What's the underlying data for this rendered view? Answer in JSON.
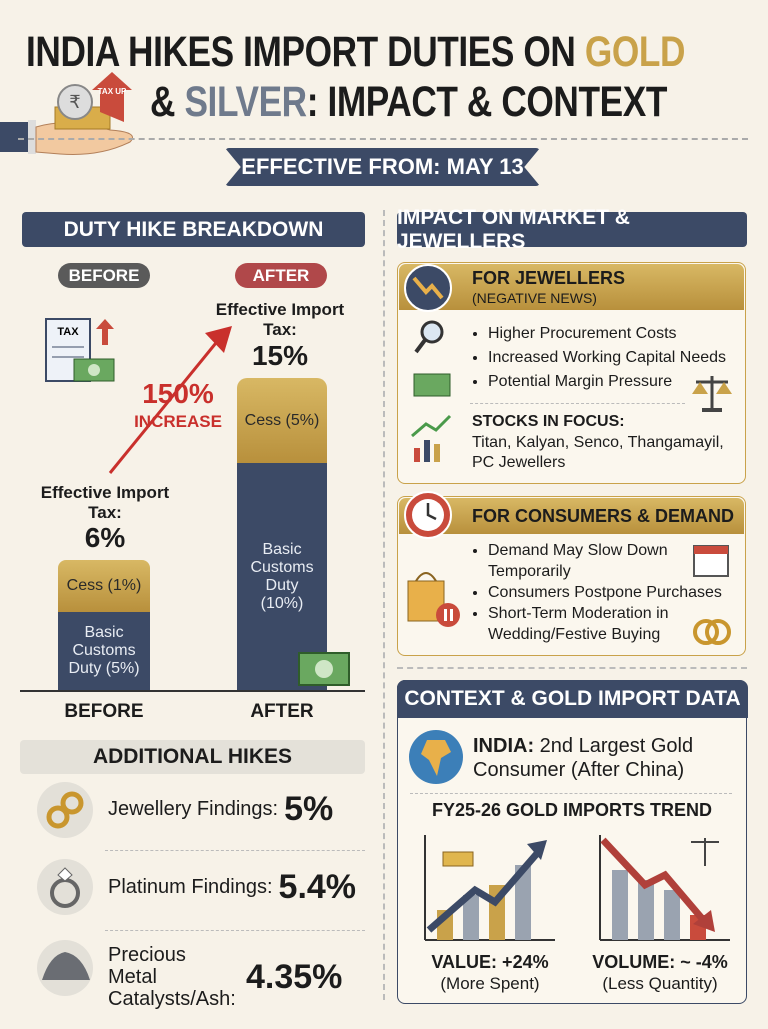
{
  "title": {
    "line1": "INDIA HIKES IMPORT DUTIES ON",
    "gold": "GOLD",
    "amp": "&",
    "silver": "SILVER",
    "line2": ": IMPACT & CONTEXT",
    "icon": "TAX UP"
  },
  "effective": "EFFECTIVE FROM: MAY 13",
  "breakdown": {
    "header": "DUTY HIKE BREAKDOWN",
    "tax_icon": "TAX",
    "before": {
      "pill": "BEFORE",
      "label": "Effective Import Tax:",
      "value": "6%",
      "cess": "Cess (1%)",
      "basic": "Basic Customs Duty (5%)",
      "axis": "BEFORE"
    },
    "after": {
      "pill": "AFTER",
      "label": "Effective Import Tax:",
      "value": "15%",
      "cess": "Cess (5%)",
      "basic": "Basic Customs Duty (10%)",
      "axis": "AFTER"
    },
    "increase": {
      "value": "150%",
      "label": "INCREASE"
    }
  },
  "additional": {
    "header": "ADDITIONAL HIKES",
    "items": [
      {
        "label": "Jewellery Findings:",
        "value": "5%"
      },
      {
        "label": "Platinum Findings:",
        "value": "5.4%"
      },
      {
        "label": "Precious Metal Catalysts/Ash:",
        "value": "4.35%"
      }
    ]
  },
  "impact": {
    "header": "IMPACT ON MARKET & JEWELLERS",
    "jewellers": {
      "title": "FOR JEWELLERS",
      "subtitle": "(NEGATIVE NEWS)",
      "bullets": [
        "Higher Procurement Costs",
        "Increased Working Capital Needs",
        "Potential Margin Pressure"
      ],
      "stocks_title": "STOCKS IN FOCUS:",
      "stocks": "Titan, Kalyan, Senco, Thangamayil, PC Jewellers"
    },
    "consumers": {
      "title": "FOR CONSUMERS & DEMAND",
      "bullets": [
        "Demand May Slow Down Temporarily",
        "Consumers Postpone Purchases",
        "Short-Term Moderation in Wedding/Festive Buying"
      ]
    }
  },
  "context": {
    "header": "CONTEXT & GOLD IMPORT DATA",
    "india_label": "INDIA:",
    "india_text": "2nd Largest Gold Consumer (After China)",
    "trend_title": "FY25-26 GOLD IMPORTS TREND",
    "value": {
      "label": "VALUE: +24%",
      "note": "(More Spent)"
    },
    "volume": {
      "label": "VOLUME: ~ -4%",
      "note": "(Less Quantity)"
    }
  }
}
